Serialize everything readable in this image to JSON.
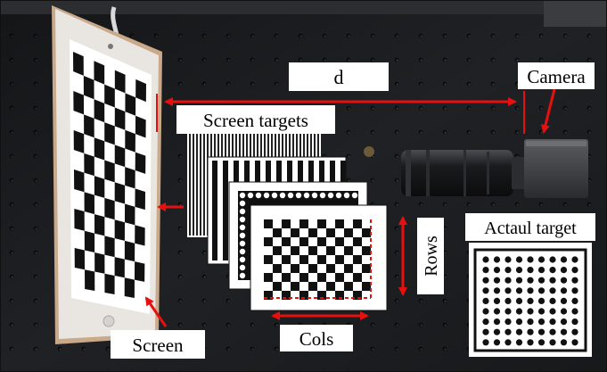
{
  "labels": {
    "distance": "d",
    "camera": "Camera",
    "screen_targets": "Screen targets",
    "actual_target": "Actaul target",
    "rows": "Rows",
    "cols": "Cols",
    "screen": "Screen"
  },
  "colors": {
    "annotation": "#e8100f",
    "board": "#1f2124",
    "label_box": "#ffffff",
    "label_border": "#222222"
  },
  "objects": {
    "tablet": "tablet-with-checkerboard",
    "camera": "industrial-camera-with-lens",
    "actual_target": "circle-grid-calibration-board",
    "screen_targets": "stacked-pattern-cards"
  }
}
